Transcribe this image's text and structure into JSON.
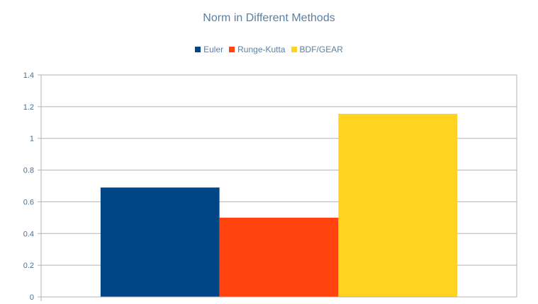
{
  "chart_data": {
    "type": "bar",
    "title": "Norm in Different Methods",
    "xlabel": "",
    "ylabel": "",
    "categories": [
      ""
    ],
    "series": [
      {
        "name": "Euler",
        "values": [
          0.69
        ],
        "color": "#004586"
      },
      {
        "name": "Runge-Kutta",
        "values": [
          0.5
        ],
        "color": "#ff420e"
      },
      {
        "name": "BDF/GEAR",
        "values": [
          1.155
        ],
        "color": "#ffd320"
      }
    ],
    "ylim": [
      0,
      1.4
    ],
    "yticks": [
      "0",
      "0.2",
      "0.4",
      "0.6",
      "0.8",
      "1",
      "1.2",
      "1.4"
    ],
    "grid": true,
    "legend_position": "top"
  }
}
